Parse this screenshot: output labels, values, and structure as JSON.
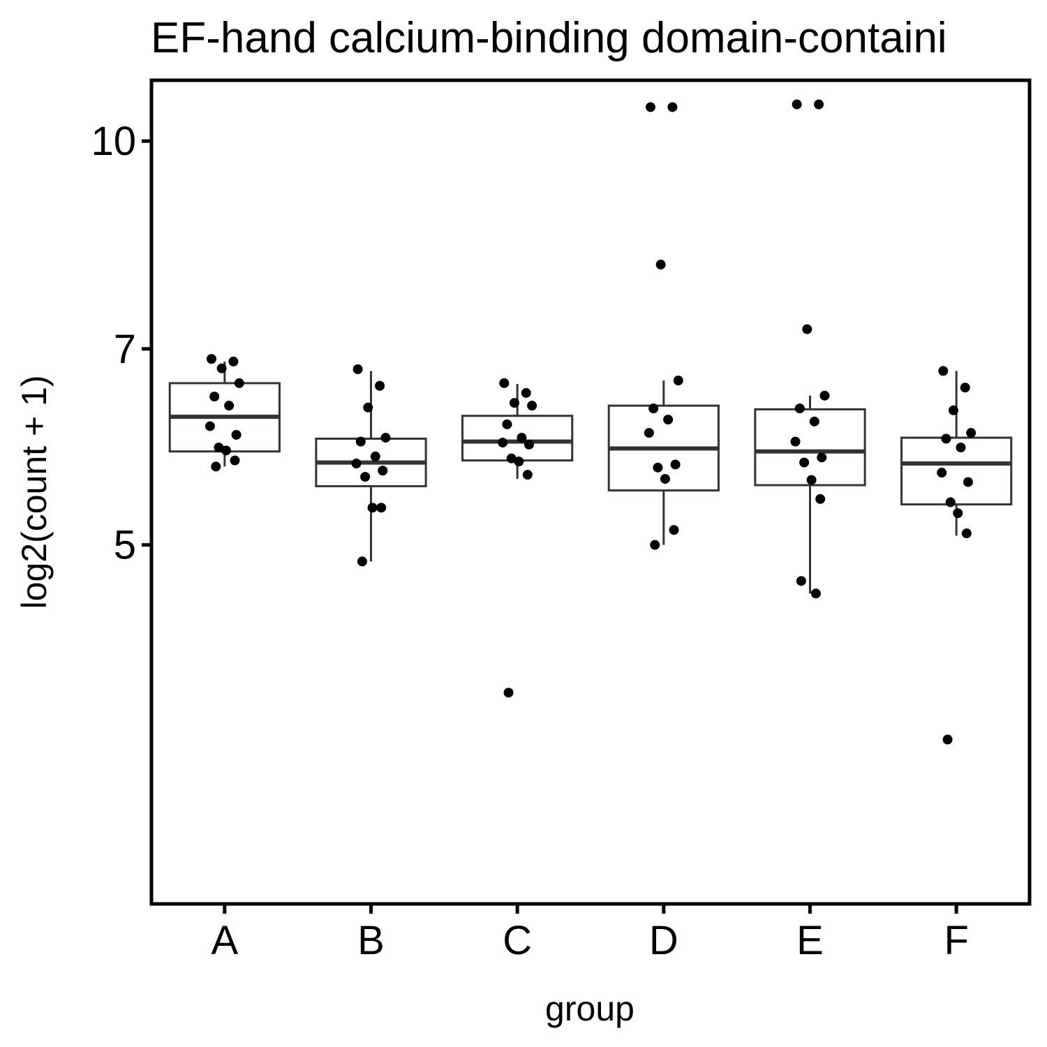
{
  "chart_data": {
    "type": "box",
    "title": "EF-hand calcium-binding domain-containi",
    "xlabel": "group",
    "ylabel": "log2(count + 1)",
    "scale": "log",
    "ylim": [
      2.7,
      11.1
    ],
    "yticks": [
      5,
      7,
      10
    ],
    "ytick_labels": [
      "5",
      "7",
      "10"
    ],
    "grid": false,
    "categories": [
      "A",
      "B",
      "C",
      "D",
      "E",
      "F"
    ],
    "boxes": [
      {
        "group": "A",
        "q1": 5.87,
        "median": 6.23,
        "q3": 6.6,
        "whisker_low": 5.72,
        "whisker_high": 6.85
      },
      {
        "group": "B",
        "q1": 5.53,
        "median": 5.76,
        "q3": 6.0,
        "whisker_low": 4.86,
        "whisker_high": 6.74
      },
      {
        "group": "C",
        "q1": 5.78,
        "median": 5.97,
        "q3": 6.24,
        "whisker_low": 5.6,
        "whisker_high": 6.59
      },
      {
        "group": "D",
        "q1": 5.49,
        "median": 5.9,
        "q3": 6.35,
        "whisker_low": 5.0,
        "whisker_high": 6.63
      },
      {
        "group": "E",
        "q1": 5.54,
        "median": 5.87,
        "q3": 6.31,
        "whisker_low": 4.6,
        "whisker_high": 6.46
      },
      {
        "group": "F",
        "q1": 5.36,
        "median": 5.75,
        "q3": 6.01,
        "whisker_low": 5.08,
        "whisker_high": 6.74
      }
    ],
    "points": [
      {
        "group": "A",
        "values": [
          6.88,
          6.85,
          6.77,
          6.6,
          6.45,
          6.35,
          6.13,
          6.04,
          5.91,
          5.88,
          5.78,
          5.72
        ]
      },
      {
        "group": "B",
        "values": [
          6.76,
          6.57,
          6.33,
          6.01,
          5.97,
          5.82,
          5.75,
          5.68,
          5.62,
          5.33,
          5.33,
          4.86
        ]
      },
      {
        "group": "C",
        "values": [
          6.6,
          6.49,
          6.38,
          6.35,
          6.15,
          6.01,
          5.96,
          5.94,
          5.8,
          5.77,
          5.64,
          3.88
        ]
      },
      {
        "group": "D",
        "values": [
          10.6,
          10.6,
          8.09,
          6.63,
          6.32,
          6.2,
          6.06,
          5.74,
          5.71,
          5.6,
          5.13,
          5.0
        ]
      },
      {
        "group": "E",
        "values": [
          10.65,
          10.65,
          7.24,
          6.46,
          6.32,
          6.18,
          5.97,
          5.81,
          5.76,
          5.59,
          5.41,
          4.7,
          4.6
        ]
      },
      {
        "group": "F",
        "values": [
          6.74,
          6.55,
          6.3,
          6.06,
          6.0,
          5.91,
          5.66,
          5.57,
          5.38,
          5.28,
          5.1,
          3.58
        ]
      }
    ],
    "colors": {
      "box": "#333333",
      "point": "#000000",
      "axis": "#000000"
    }
  }
}
